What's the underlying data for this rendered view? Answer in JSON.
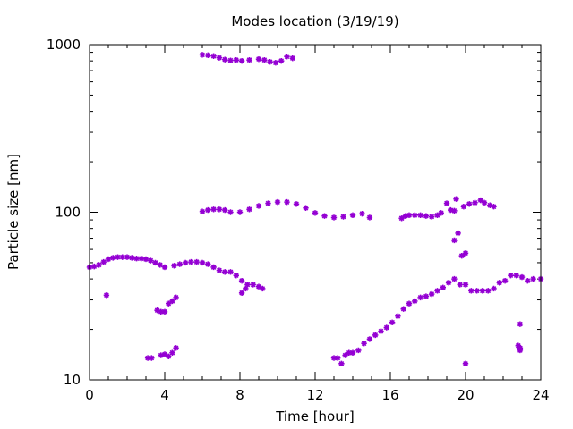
{
  "chart_data": {
    "type": "scatter",
    "title": "Modes location (3/19/19)",
    "xlabel": "Time [hour]",
    "ylabel": "Particle size [nm]",
    "xlim": [
      0,
      24
    ],
    "ylim": [
      10,
      1000
    ],
    "y_scale": "log",
    "x_ticks": [
      0,
      4,
      8,
      12,
      16,
      20,
      24
    ],
    "y_ticks": [
      10,
      100,
      1000
    ],
    "grid": false,
    "marker_color": "#9400D3",
    "marker": "asterisk",
    "segments": [
      {
        "x": [
          0.0,
          0.25,
          0.5,
          0.75,
          1.0,
          1.25,
          1.5,
          1.75,
          2.0,
          2.25,
          2.5,
          2.75,
          3.0,
          3.25,
          3.5,
          3.75,
          4.0
        ],
        "y": [
          47,
          47.5,
          48.5,
          50.5,
          52.5,
          53.5,
          54,
          54,
          54,
          53.5,
          53,
          53,
          52.5,
          51.5,
          50,
          48.5,
          47
        ]
      },
      {
        "x": [
          4.5,
          4.8,
          5.1,
          5.4,
          5.7,
          6.0,
          6.3,
          6.6,
          6.9,
          7.2,
          7.5,
          7.8,
          8.1,
          8.4,
          8.7,
          9.0,
          9.2
        ],
        "y": [
          48,
          49,
          50,
          50.5,
          50.5,
          50,
          49,
          47,
          45,
          44,
          44,
          42,
          39,
          37,
          37,
          36,
          35
        ]
      },
      {
        "x": [
          8.1,
          8.3
        ],
        "y": [
          33,
          35
        ]
      },
      {
        "x": [
          0.9
        ],
        "y": [
          32
        ]
      },
      {
        "x": [
          3.6,
          3.8,
          4.0,
          4.2,
          4.4,
          4.6
        ],
        "y": [
          26,
          25.5,
          25.5,
          28.5,
          29.5,
          31
        ]
      },
      {
        "x": [
          3.1,
          3.3,
          3.8,
          4.0,
          4.2,
          4.4,
          4.6
        ],
        "y": [
          13.5,
          13.5,
          14,
          14.2,
          13.8,
          14.5,
          15.5
        ]
      },
      {
        "x": [
          6.0,
          6.3,
          6.6,
          6.9,
          7.2,
          7.5,
          7.8,
          8.1
        ],
        "y": [
          870,
          865,
          855,
          835,
          815,
          805,
          810,
          800
        ]
      },
      {
        "x": [
          8.5,
          9.0,
          9.3,
          9.6,
          9.9,
          10.2,
          10.5,
          10.8
        ],
        "y": [
          810,
          820,
          810,
          790,
          780,
          800,
          850,
          830
        ]
      },
      {
        "x": [
          6.0,
          6.3,
          6.6,
          6.9,
          7.2,
          7.5,
          8.0,
          8.5,
          9.0,
          9.5,
          10.0,
          10.5,
          11.0,
          11.5,
          12.0,
          12.5,
          13.0,
          13.5,
          14.0,
          14.5,
          14.9
        ],
        "y": [
          101,
          103,
          104,
          104,
          103,
          100,
          100,
          104,
          109,
          113,
          115,
          115,
          112,
          106,
          99,
          95,
          93,
          94,
          96,
          98,
          93
        ]
      },
      {
        "x": [
          16.6,
          16.8,
          17.0,
          17.3,
          17.6,
          17.9,
          18.2,
          18.5,
          18.7,
          19.0,
          19.2,
          19.4
        ],
        "y": [
          92,
          95,
          96,
          96,
          96,
          95,
          94,
          96,
          99,
          113,
          103,
          102
        ]
      },
      {
        "x": [
          19.5,
          19.9,
          20.2,
          20.5,
          20.8,
          21.0,
          21.3,
          21.5
        ],
        "y": [
          120,
          108,
          112,
          114,
          118,
          114,
          110,
          108
        ]
      },
      {
        "x": [
          19.4,
          19.6,
          19.8,
          20.0
        ],
        "y": [
          68,
          75,
          55,
          57
        ]
      },
      {
        "x": [
          13.0,
          13.2,
          13.4,
          13.6,
          13.8,
          14.0,
          14.3,
          14.6,
          14.9,
          15.2,
          15.5,
          15.8,
          16.1,
          16.4,
          16.7,
          17.0,
          17.3,
          17.6,
          17.9,
          18.2,
          18.5,
          18.8,
          19.1,
          19.4,
          19.7,
          20.0,
          20.3,
          20.6,
          20.9,
          21.2,
          21.5,
          21.8,
          22.1,
          22.4,
          22.7,
          23.0,
          23.3,
          23.6,
          24.0
        ],
        "y": [
          13.5,
          13.5,
          12.5,
          14,
          14.5,
          14.5,
          15,
          16.5,
          17.5,
          18.5,
          19.5,
          20.5,
          22,
          24,
          26.5,
          28.5,
          29.5,
          31,
          31.5,
          32.5,
          34,
          35.5,
          38,
          40,
          37,
          37,
          34,
          34,
          34,
          34,
          35,
          38,
          39,
          42,
          42,
          41,
          39,
          40,
          40
        ]
      },
      {
        "x": [
          20.0
        ],
        "y": [
          12.5
        ]
      },
      {
        "x": [
          22.9,
          22.8,
          22.9,
          22.9
        ],
        "y": [
          21.5,
          16,
          15.5,
          15
        ]
      }
    ]
  }
}
